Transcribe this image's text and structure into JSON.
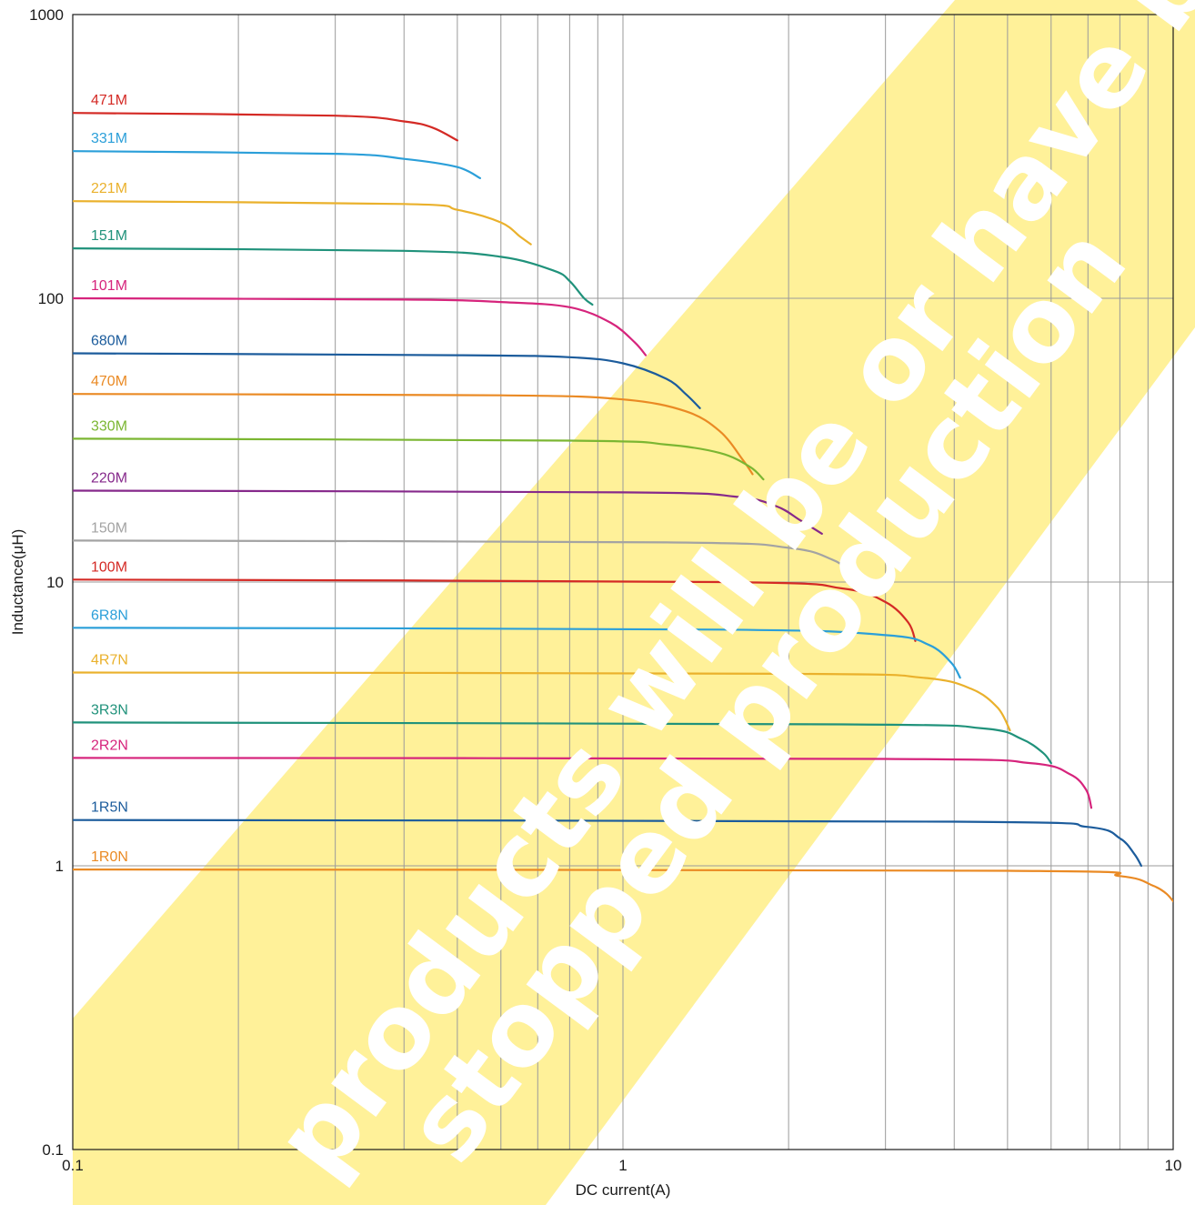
{
  "chart_data": {
    "type": "line",
    "xlabel": "DC current(A)",
    "ylabel": "Inductance(μH)",
    "x_scale": "log",
    "y_scale": "log",
    "xlim": [
      0.1,
      10
    ],
    "ylim": [
      0.1,
      1000
    ],
    "x_ticks": [
      {
        "value": 0.1,
        "label": "0.1"
      },
      {
        "value": 1,
        "label": "1"
      },
      {
        "value": 10,
        "label": "10"
      }
    ],
    "y_ticks": [
      {
        "value": 0.1,
        "label": "0.1"
      },
      {
        "value": 1,
        "label": "1"
      },
      {
        "value": 10,
        "label": "10"
      },
      {
        "value": 100,
        "label": "100"
      },
      {
        "value": 1000,
        "label": "1000"
      }
    ],
    "grid": true,
    "watermark": {
      "lines": [
        "products will be or have been",
        "stopped production"
      ],
      "band_color": "#fff199",
      "text_color": "#ffffff"
    },
    "series": [
      {
        "name": "471M",
        "color": "#d42a25",
        "points": [
          [
            0.1,
            450
          ],
          [
            0.3,
            440
          ],
          [
            0.4,
            420
          ],
          [
            0.45,
            400
          ],
          [
            0.5,
            360
          ]
        ]
      },
      {
        "name": "331M",
        "color": "#2b9fd9",
        "points": [
          [
            0.1,
            330
          ],
          [
            0.3,
            323
          ],
          [
            0.4,
            310
          ],
          [
            0.5,
            290
          ],
          [
            0.55,
            265
          ]
        ]
      },
      {
        "name": "221M",
        "color": "#eab12c",
        "points": [
          [
            0.1,
            220
          ],
          [
            0.4,
            215
          ],
          [
            0.5,
            205
          ],
          [
            0.6,
            185
          ],
          [
            0.65,
            165
          ],
          [
            0.68,
            155
          ]
        ]
      },
      {
        "name": "151M",
        "color": "#20927b",
        "points": [
          [
            0.1,
            150
          ],
          [
            0.4,
            147
          ],
          [
            0.6,
            140
          ],
          [
            0.75,
            125
          ],
          [
            0.8,
            115
          ],
          [
            0.85,
            100
          ],
          [
            0.88,
            95
          ]
        ]
      },
      {
        "name": "101M",
        "color": "#d6247c",
        "points": [
          [
            0.1,
            100
          ],
          [
            0.4,
            99
          ],
          [
            0.6,
            97
          ],
          [
            0.8,
            93
          ],
          [
            0.95,
            82
          ],
          [
            1.05,
            70
          ],
          [
            1.1,
            63
          ]
        ]
      },
      {
        "name": "680M",
        "color": "#1c5c9c",
        "points": [
          [
            0.1,
            64
          ],
          [
            0.5,
            63
          ],
          [
            0.8,
            62
          ],
          [
            1.0,
            59
          ],
          [
            1.2,
            52
          ],
          [
            1.3,
            46
          ],
          [
            1.38,
            41
          ]
        ]
      },
      {
        "name": "470M",
        "color": "#ea8a24",
        "points": [
          [
            0.1,
            46
          ],
          [
            0.6,
            45.5
          ],
          [
            1.0,
            44
          ],
          [
            1.3,
            40
          ],
          [
            1.5,
            34
          ],
          [
            1.65,
            27
          ],
          [
            1.72,
            24
          ]
        ]
      },
      {
        "name": "330M",
        "color": "#7bb632",
        "points": [
          [
            0.1,
            32
          ],
          [
            0.8,
            31.5
          ],
          [
            1.2,
            30.5
          ],
          [
            1.5,
            28.5
          ],
          [
            1.7,
            25.5
          ],
          [
            1.8,
            23
          ]
        ]
      },
      {
        "name": "220M",
        "color": "#86298b",
        "points": [
          [
            0.1,
            21
          ],
          [
            1.0,
            20.7
          ],
          [
            1.6,
            20
          ],
          [
            1.9,
            18.5
          ],
          [
            2.1,
            16.5
          ],
          [
            2.3,
            14.8
          ]
        ]
      },
      {
        "name": "150M",
        "color": "#a3a3a3",
        "points": [
          [
            0.1,
            14
          ],
          [
            1.2,
            13.8
          ],
          [
            2.0,
            13.2
          ],
          [
            2.4,
            12
          ],
          [
            2.6,
            10.8
          ],
          [
            2.8,
            9.5
          ]
        ]
      },
      {
        "name": "100M",
        "color": "#d42a25",
        "points": [
          [
            0.1,
            10.2
          ],
          [
            1.5,
            10
          ],
          [
            2.5,
            9.5
          ],
          [
            3.0,
            8.5
          ],
          [
            3.3,
            7.2
          ],
          [
            3.4,
            6.2
          ]
        ]
      },
      {
        "name": "6R8N",
        "color": "#2b9fd9",
        "points": [
          [
            0.1,
            6.9
          ],
          [
            1.5,
            6.8
          ],
          [
            3.0,
            6.5
          ],
          [
            3.6,
            6.0
          ],
          [
            3.95,
            5.2
          ],
          [
            4.1,
            4.6
          ]
        ]
      },
      {
        "name": "4R7N",
        "color": "#eab12c",
        "points": [
          [
            0.1,
            4.8
          ],
          [
            2.0,
            4.75
          ],
          [
            3.5,
            4.6
          ],
          [
            4.3,
            4.2
          ],
          [
            4.8,
            3.6
          ],
          [
            5.05,
            3.0
          ]
        ]
      },
      {
        "name": "3R3N",
        "color": "#20927b",
        "points": [
          [
            0.1,
            3.2
          ],
          [
            2.5,
            3.15
          ],
          [
            4.5,
            3.05
          ],
          [
            5.3,
            2.8
          ],
          [
            5.8,
            2.5
          ],
          [
            6.0,
            2.3
          ]
        ]
      },
      {
        "name": "2R2N",
        "color": "#d6247c",
        "points": [
          [
            0.1,
            2.4
          ],
          [
            3.0,
            2.38
          ],
          [
            5.5,
            2.3
          ],
          [
            6.5,
            2.1
          ],
          [
            6.95,
            1.85
          ],
          [
            7.1,
            1.6
          ]
        ]
      },
      {
        "name": "1R5N",
        "color": "#1c5c9c",
        "points": [
          [
            0.1,
            1.45
          ],
          [
            4.0,
            1.43
          ],
          [
            7.0,
            1.37
          ],
          [
            8.0,
            1.25
          ],
          [
            8.5,
            1.1
          ],
          [
            8.75,
            1.0
          ]
        ]
      },
      {
        "name": "1R0N",
        "color": "#ea8a24",
        "points": [
          [
            0.1,
            0.97
          ],
          [
            5.0,
            0.96
          ],
          [
            8.0,
            0.92
          ],
          [
            9.2,
            0.85
          ],
          [
            9.7,
            0.8
          ],
          [
            10,
            0.75
          ]
        ]
      }
    ]
  }
}
